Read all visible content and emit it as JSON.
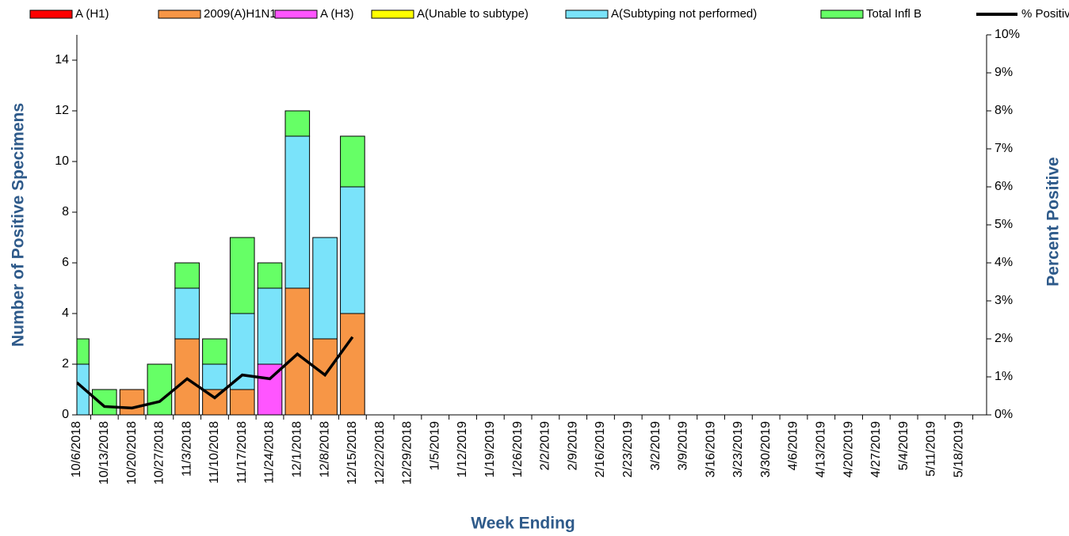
{
  "chart_data": {
    "type": "stacked-bar-line",
    "x_label": "Week Ending",
    "y_label": "Number of  Positive Specimens",
    "y2_label": "Percent Positive",
    "categories": [
      "10/6/2018",
      "10/13/2018",
      "10/20/2018",
      "10/27/2018",
      "11/3/2018",
      "11/10/2018",
      "11/17/2018",
      "11/24/2018",
      "12/1/2018",
      "12/8/2018",
      "12/15/2018",
      "12/22/2018",
      "12/29/2018",
      "1/5/2019",
      "1/12/2019",
      "1/19/2019",
      "1/26/2019",
      "2/2/2019",
      "2/9/2019",
      "2/16/2019",
      "2/23/2019",
      "3/2/2019",
      "3/9/2019",
      "3/16/2019",
      "3/23/2019",
      "3/30/2019",
      "4/6/2019",
      "4/13/2019",
      "4/20/2019",
      "4/27/2019",
      "5/4/2019",
      "5/11/2019",
      "5/18/2019"
    ],
    "series": [
      {
        "name": "A (H1)",
        "color": "#ff0000",
        "values": [
          0,
          0,
          0,
          0,
          0,
          0,
          0,
          0,
          0,
          0,
          0,
          null,
          null,
          null,
          null,
          null,
          null,
          null,
          null,
          null,
          null,
          null,
          null,
          null,
          null,
          null,
          null,
          null,
          null,
          null,
          null,
          null,
          null
        ]
      },
      {
        "name": "2009(A)H1N1",
        "color": "#f79646",
        "values": [
          0,
          0,
          1,
          0,
          3,
          1,
          1,
          0,
          5,
          3,
          4,
          null,
          null,
          null,
          null,
          null,
          null,
          null,
          null,
          null,
          null,
          null,
          null,
          null,
          null,
          null,
          null,
          null,
          null,
          null,
          null,
          null,
          null
        ]
      },
      {
        "name": "A (H3)",
        "color": "#ff55ff",
        "values": [
          0,
          0,
          0,
          0,
          0,
          0,
          0,
          2,
          0,
          0,
          0,
          null,
          null,
          null,
          null,
          null,
          null,
          null,
          null,
          null,
          null,
          null,
          null,
          null,
          null,
          null,
          null,
          null,
          null,
          null,
          null,
          null,
          null
        ]
      },
      {
        "name": "A(Unable to subtype)",
        "color": "#ffff00",
        "values": [
          0,
          0,
          0,
          0,
          0,
          0,
          0,
          0,
          0,
          0,
          0,
          null,
          null,
          null,
          null,
          null,
          null,
          null,
          null,
          null,
          null,
          null,
          null,
          null,
          null,
          null,
          null,
          null,
          null,
          null,
          null,
          null,
          null
        ]
      },
      {
        "name": "A(Subtyping not performed)",
        "color": "#7ae3fa",
        "values": [
          2,
          0,
          0,
          0,
          2,
          1,
          3,
          3,
          6,
          4,
          5,
          null,
          null,
          null,
          null,
          null,
          null,
          null,
          null,
          null,
          null,
          null,
          null,
          null,
          null,
          null,
          null,
          null,
          null,
          null,
          null,
          null,
          null
        ]
      },
      {
        "name": "Total Infl B",
        "color": "#66ff66",
        "values": [
          1,
          1,
          0,
          2,
          1,
          1,
          3,
          1,
          1,
          0,
          2,
          null,
          null,
          null,
          null,
          null,
          null,
          null,
          null,
          null,
          null,
          null,
          null,
          null,
          null,
          null,
          null,
          null,
          null,
          null,
          null,
          null,
          null
        ]
      },
      {
        "name": "% Positive",
        "color": "#000000",
        "axis": "y2",
        "type": "line",
        "values": [
          0.85,
          0.22,
          0.18,
          0.35,
          0.95,
          0.45,
          1.05,
          0.95,
          1.6,
          1.05,
          2.05,
          null,
          null,
          null,
          null,
          null,
          null,
          null,
          null,
          null,
          null,
          null,
          null,
          null,
          null,
          null,
          null,
          null,
          null,
          null,
          null,
          null,
          null
        ]
      }
    ],
    "ylim": [
      0,
      15
    ],
    "yticks": [
      0,
      2,
      4,
      6,
      8,
      10,
      12,
      14
    ],
    "y2lim": [
      0,
      10
    ],
    "y2ticks": [
      {
        "value": 0,
        "label": "0%"
      },
      {
        "value": 1,
        "label": "1%"
      },
      {
        "value": 2,
        "label": "2%"
      },
      {
        "value": 3,
        "label": "3%"
      },
      {
        "value": 4,
        "label": "4%"
      },
      {
        "value": 5,
        "label": "5%"
      },
      {
        "value": 6,
        "label": "6%"
      },
      {
        "value": 7,
        "label": "7%"
      },
      {
        "value": 8,
        "label": "8%"
      },
      {
        "value": 9,
        "label": "9%"
      },
      {
        "value": 10,
        "label": "10%"
      }
    ]
  }
}
